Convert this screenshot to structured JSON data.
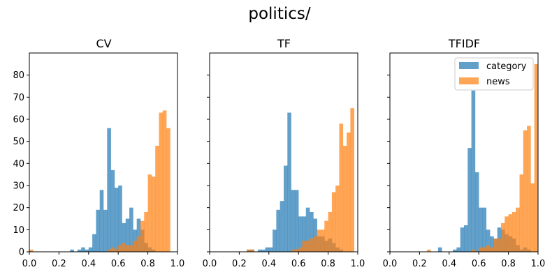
{
  "suptitle": "politics/",
  "chart_data": {
    "type": "bar",
    "subplot_type": "histogram",
    "xlim": [
      0,
      1
    ],
    "ylim": [
      0,
      90
    ],
    "x_ticks": [
      "0.0",
      "0.2",
      "0.4",
      "0.6",
      "0.8",
      "1.0"
    ],
    "y_ticks": [
      "0",
      "10",
      "20",
      "30",
      "40",
      "50",
      "60",
      "70",
      "80"
    ],
    "bins": 40,
    "series_colors": {
      "category": "#1f77b4",
      "news": "#ff7f0e"
    },
    "legend": {
      "placement": "top-right",
      "in_panel": "TFIDF",
      "entries": [
        "category",
        "news"
      ]
    },
    "panels": [
      {
        "title": "CV",
        "series": [
          {
            "name": "category",
            "values": [
              0,
              0,
              0,
              0,
              0,
              0,
              0,
              0,
              0,
              0,
              0,
              1,
              0,
              1,
              2,
              1,
              2,
              8,
              19,
              28,
              19,
              56,
              37,
              29,
              30,
              13,
              15,
              20,
              10,
              15,
              10,
              4,
              2,
              1,
              0,
              0,
              0,
              0,
              0,
              0
            ]
          },
          {
            "name": "news",
            "values": [
              1,
              0,
              0,
              0,
              0,
              0,
              0,
              0,
              0,
              0,
              0,
              0,
              0,
              0,
              0,
              0,
              0,
              0,
              0,
              0,
              0,
              1,
              2,
              1,
              3,
              4,
              3,
              3,
              5,
              7,
              14,
              18,
              35,
              34,
              48,
              63,
              64,
              56,
              0,
              0
            ]
          }
        ]
      },
      {
        "title": "TF",
        "series": [
          {
            "name": "category",
            "values": [
              0,
              0,
              0,
              0,
              0,
              0,
              0,
              0,
              0,
              0,
              1,
              1,
              0,
              1,
              1,
              2,
              2,
              10,
              19,
              23,
              39,
              63,
              28,
              28,
              16,
              16,
              20,
              18,
              15,
              7,
              7,
              5,
              6,
              4,
              2,
              1,
              0,
              0,
              0,
              0
            ]
          },
          {
            "name": "news",
            "values": [
              0,
              0,
              0,
              0,
              0,
              0,
              0,
              0,
              0,
              0,
              1,
              1,
              0,
              0,
              0,
              0,
              0,
              0,
              0,
              0,
              0,
              0,
              1,
              1,
              2,
              5,
              5,
              6,
              7,
              10,
              10,
              14,
              18,
              27,
              30,
              58,
              48,
              54,
              65,
              0
            ]
          }
        ]
      },
      {
        "title": "TFIDF",
        "series": [
          {
            "name": "category",
            "values": [
              0,
              0,
              0,
              0,
              0,
              0,
              0,
              0,
              0,
              0,
              0,
              0,
              0,
              2,
              0,
              0,
              0,
              1,
              2,
              11,
              12,
              47,
              73,
              36,
              20,
              20,
              10,
              7,
              6,
              11,
              10,
              8,
              7,
              6,
              3,
              1,
              2,
              1,
              0,
              0
            ]
          },
          {
            "name": "news",
            "values": [
              0,
              0,
              0,
              0,
              0,
              0,
              0,
              0,
              0,
              0,
              1,
              0,
              0,
              0,
              0,
              0,
              0,
              0,
              0,
              0,
              0,
              0,
              1,
              0,
              2,
              2,
              3,
              2,
              6,
              6,
              13,
              16,
              17,
              18,
              20,
              35,
              55,
              57,
              31,
              85
            ]
          }
        ]
      }
    ]
  }
}
